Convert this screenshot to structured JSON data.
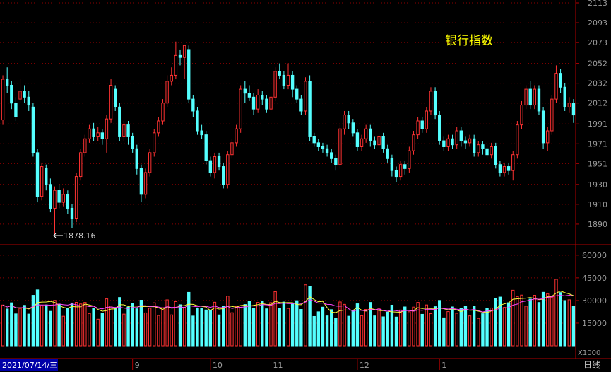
{
  "chart_data": [
    {
      "type": "candlestick",
      "title": "银行指数",
      "price_axis": {
        "ticks": [
          2113,
          2093,
          2073,
          2052,
          2032,
          2012,
          1991,
          1971,
          1951,
          1930,
          1910,
          1890
        ],
        "range": [
          1870,
          2113
        ]
      },
      "low_marker": {
        "label": "1878.16",
        "value": 1878.16
      },
      "colors": {
        "up": "#ff3232",
        "down": "#54ffff",
        "up_fill": "#000000"
      },
      "candles": [
        [
          1995,
          2036,
          2040,
          1990
        ],
        [
          2036,
          2030,
          2048,
          2022
        ],
        [
          2030,
          2012,
          2034,
          2006
        ],
        [
          2012,
          1998,
          2018,
          1994
        ],
        [
          2016,
          2024,
          2036,
          2012
        ],
        [
          2024,
          2018,
          2030,
          2012
        ],
        [
          2018,
          2010,
          2024,
          2004
        ],
        [
          2008,
          1962,
          2012,
          1958
        ],
        [
          1962,
          1918,
          1966,
          1912
        ],
        [
          1918,
          1948,
          1952,
          1914
        ],
        [
          1946,
          1930,
          1950,
          1924
        ],
        [
          1930,
          1906,
          1936,
          1902
        ],
        [
          1906,
          1924,
          1928,
          1880
        ],
        [
          1924,
          1912,
          1930,
          1906
        ],
        [
          1912,
          1920,
          1926,
          1908
        ],
        [
          1920,
          1906,
          1924,
          1900
        ],
        [
          1906,
          1896,
          1910,
          1886
        ],
        [
          1896,
          1938,
          1942,
          1892
        ],
        [
          1938,
          1962,
          1966,
          1934
        ],
        [
          1962,
          1976,
          1980,
          1958
        ],
        [
          1976,
          1986,
          1990,
          1972
        ],
        [
          1986,
          1978,
          1992,
          1974
        ],
        [
          1978,
          1982,
          1988,
          1974
        ],
        [
          1982,
          1976,
          1986,
          1970
        ],
        [
          1976,
          1996,
          2000,
          1962
        ],
        [
          1996,
          2030,
          2036,
          1992
        ],
        [
          2026,
          2008,
          2030,
          2004
        ],
        [
          2008,
          1978,
          2012,
          1974
        ],
        [
          1978,
          1990,
          1994,
          1974
        ],
        [
          1990,
          1978,
          1994,
          1970
        ],
        [
          1978,
          1966,
          1982,
          1962
        ],
        [
          1966,
          1946,
          1970,
          1940
        ],
        [
          1946,
          1920,
          1950,
          1912
        ],
        [
          1920,
          1942,
          1946,
          1916
        ],
        [
          1942,
          1962,
          1966,
          1938
        ],
        [
          1962,
          1982,
          1986,
          1958
        ],
        [
          1982,
          1994,
          1998,
          1978
        ],
        [
          1994,
          2012,
          2016,
          1990
        ],
        [
          2012,
          2034,
          2040,
          2008
        ],
        [
          2034,
          2040,
          2048,
          2030
        ],
        [
          2040,
          2060,
          2074,
          2036
        ],
        [
          2060,
          2058,
          2066,
          2050
        ],
        [
          2058,
          2070,
          2070,
          2036
        ],
        [
          2066,
          2016,
          2070,
          2012
        ],
        [
          2016,
          2004,
          2020,
          1998
        ],
        [
          2004,
          1984,
          2008,
          1980
        ],
        [
          1984,
          1980,
          1990,
          1976
        ],
        [
          1980,
          1954,
          1984,
          1950
        ],
        [
          1954,
          1942,
          1958,
          1938
        ],
        [
          1942,
          1958,
          1962,
          1936
        ],
        [
          1958,
          1948,
          1962,
          1944
        ],
        [
          1948,
          1930,
          1952,
          1926
        ],
        [
          1930,
          1960,
          1964,
          1926
        ],
        [
          1960,
          1972,
          1976,
          1956
        ],
        [
          1972,
          1986,
          1990,
          1968
        ],
        [
          1986,
          2026,
          2030,
          1982
        ],
        [
          2026,
          2022,
          2034,
          2012
        ],
        [
          2022,
          2018,
          2030,
          2014
        ],
        [
          2018,
          2006,
          2022,
          2000
        ],
        [
          2006,
          2020,
          2026,
          2002
        ],
        [
          2020,
          2016,
          2024,
          2010
        ],
        [
          2016,
          2006,
          2020,
          2002
        ],
        [
          2006,
          2018,
          2022,
          2002
        ],
        [
          2018,
          2044,
          2048,
          2014
        ],
        [
          2044,
          2040,
          2052,
          2036
        ],
        [
          2040,
          2030,
          2044,
          2026
        ],
        [
          2030,
          2040,
          2052,
          2026
        ],
        [
          2040,
          2026,
          2044,
          2018
        ],
        [
          2026,
          2016,
          2030,
          2012
        ],
        [
          2016,
          2004,
          2020,
          2000
        ],
        [
          2004,
          2034,
          2038,
          2000
        ],
        [
          2034,
          1978,
          2040,
          1974
        ],
        [
          1978,
          1972,
          1982,
          1968
        ],
        [
          1972,
          1968,
          1976,
          1964
        ],
        [
          1968,
          1966,
          1972,
          1962
        ],
        [
          1966,
          1962,
          1970,
          1958
        ],
        [
          1962,
          1956,
          1966,
          1952
        ],
        [
          1956,
          1950,
          1960,
          1944
        ],
        [
          1950,
          1986,
          1990,
          1946
        ],
        [
          1986,
          2000,
          2004,
          1980
        ],
        [
          2000,
          1992,
          2004,
          1986
        ],
        [
          1992,
          1982,
          1996,
          1978
        ],
        [
          1982,
          1968,
          1986,
          1964
        ],
        [
          1968,
          1976,
          1980,
          1964
        ],
        [
          1976,
          1986,
          1990,
          1972
        ],
        [
          1986,
          1974,
          1990,
          1968
        ],
        [
          1974,
          1970,
          1978,
          1966
        ],
        [
          1970,
          1978,
          1982,
          1966
        ],
        [
          1978,
          1966,
          1982,
          1962
        ],
        [
          1966,
          1956,
          1970,
          1952
        ],
        [
          1956,
          1944,
          1960,
          1938
        ],
        [
          1944,
          1938,
          1948,
          1932
        ],
        [
          1938,
          1950,
          1954,
          1934
        ],
        [
          1950,
          1946,
          1954,
          1940
        ],
        [
          1946,
          1964,
          1968,
          1942
        ],
        [
          1964,
          1980,
          1984,
          1960
        ],
        [
          1980,
          1994,
          1998,
          1976
        ],
        [
          1994,
          1986,
          1998,
          1982
        ],
        [
          1986,
          2004,
          2008,
          1982
        ],
        [
          2004,
          2024,
          2028,
          2000
        ],
        [
          2024,
          2000,
          2028,
          1996
        ],
        [
          2000,
          1974,
          2004,
          1970
        ],
        [
          1974,
          1968,
          1978,
          1964
        ],
        [
          1968,
          1976,
          1980,
          1964
        ],
        [
          1976,
          1970,
          1980,
          1966
        ],
        [
          1970,
          1984,
          1988,
          1966
        ],
        [
          1984,
          1974,
          1988,
          1968
        ],
        [
          1974,
          1972,
          1978,
          1966
        ],
        [
          1972,
          1976,
          1980,
          1968
        ],
        [
          1976,
          1962,
          1980,
          1958
        ],
        [
          1962,
          1970,
          1974,
          1958
        ],
        [
          1970,
          1966,
          1974,
          1960
        ],
        [
          1966,
          1960,
          1970,
          1956
        ],
        [
          1960,
          1968,
          1972,
          1956
        ],
        [
          1968,
          1950,
          1972,
          1946
        ],
        [
          1950,
          1942,
          1954,
          1938
        ],
        [
          1942,
          1948,
          1952,
          1938
        ],
        [
          1948,
          1944,
          1952,
          1940
        ],
        [
          1944,
          1960,
          1964,
          1934
        ],
        [
          1960,
          1990,
          1994,
          1956
        ],
        [
          1990,
          2010,
          2014,
          1986
        ],
        [
          2010,
          2026,
          2030,
          2006
        ],
        [
          2026,
          2010,
          2034,
          2006
        ],
        [
          2010,
          2026,
          2030,
          2006
        ],
        [
          2026,
          2004,
          2030,
          2000
        ],
        [
          2004,
          1972,
          2008,
          1966
        ],
        [
          1972,
          1984,
          1988,
          1964
        ],
        [
          1984,
          2016,
          2020,
          1980
        ],
        [
          2016,
          2042,
          2050,
          2012
        ],
        [
          2042,
          2028,
          2046,
          2022
        ],
        [
          2028,
          2008,
          2032,
          2004
        ],
        [
          2008,
          2012,
          2018,
          2002
        ],
        [
          2012,
          2000,
          2016,
          1992
        ]
      ]
    },
    {
      "type": "bar",
      "title": "",
      "unit": "X1000",
      "volume_axis": {
        "ticks": [
          60000,
          45000,
          30000,
          15000
        ],
        "range": [
          0,
          66000
        ]
      },
      "ma_lines": [
        {
          "color": "#ffff3c"
        },
        {
          "color": "#ff44ff"
        }
      ],
      "x_labels": [
        "9",
        "10",
        "11",
        "12",
        "1"
      ],
      "x_label_indices": [
        30,
        48,
        62,
        82,
        101
      ]
    }
  ],
  "footer": {
    "date": "2021/07/14/三",
    "period": "日线"
  }
}
